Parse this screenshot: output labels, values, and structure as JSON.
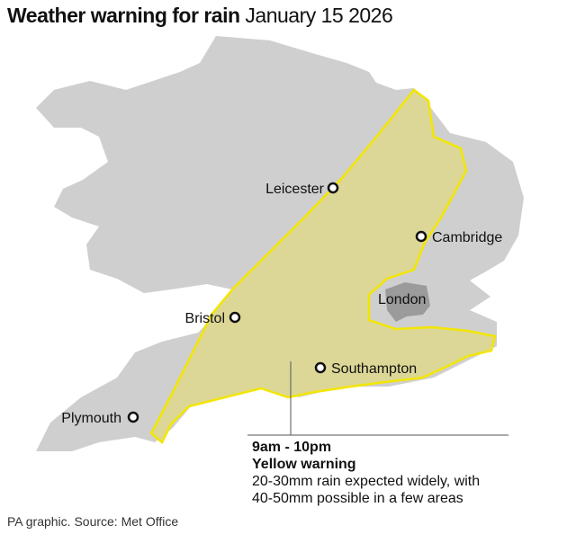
{
  "title": {
    "bold": "Weather warning for rain",
    "date": "January 15 2026"
  },
  "colors": {
    "land": "#cfcfcf",
    "london": "#9b9b9b",
    "warning_fill": "#dcd796",
    "warning_stroke": "#f3e600"
  },
  "cities": [
    {
      "name": "Leicester"
    },
    {
      "name": "Cambridge"
    },
    {
      "name": "London"
    },
    {
      "name": "Bristol"
    },
    {
      "name": "Southampton"
    },
    {
      "name": "Plymouth"
    }
  ],
  "legend": {
    "time": "9am - 10pm",
    "level": "Yellow warning",
    "line1": "20-30mm rain expected widely, with",
    "line2": "40-50mm possible in a few areas"
  },
  "source": "PA graphic. Source: Met Office"
}
